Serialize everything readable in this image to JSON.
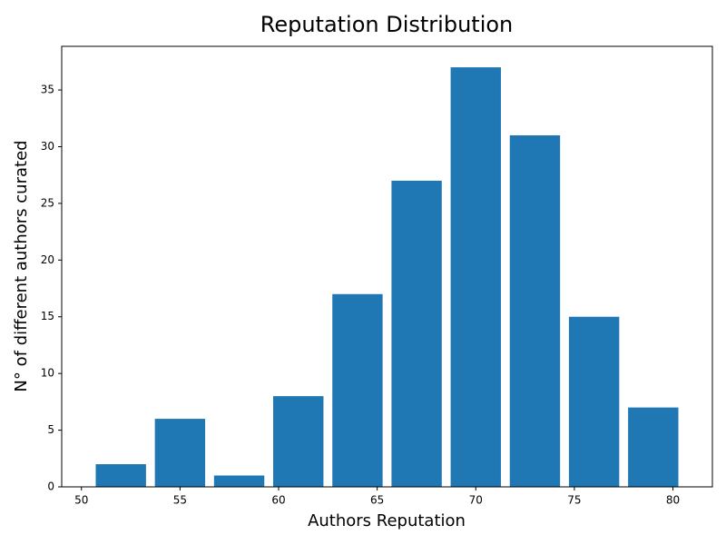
{
  "chart_data": {
    "type": "histogram",
    "title": "Reputation Distribution",
    "x_label": "Authors Reputation",
    "y_label": "N° of different authors curated",
    "bins": [
      50.5,
      53.5,
      56.5,
      59.5,
      62.5,
      65.5,
      68.5,
      71.5,
      74.5,
      77.5,
      80.5
    ],
    "values": [
      2,
      6,
      1,
      8,
      17,
      27,
      37,
      31,
      15,
      7
    ],
    "color": "#1f77b4",
    "xlim": [
      49,
      82
    ],
    "xticks": [
      50,
      55,
      60,
      65,
      70,
      75,
      80
    ],
    "ylim": [
      0,
      38.85
    ],
    "yticks": [
      0,
      5,
      10,
      15,
      20,
      25,
      30,
      35
    ],
    "grid": false
  }
}
